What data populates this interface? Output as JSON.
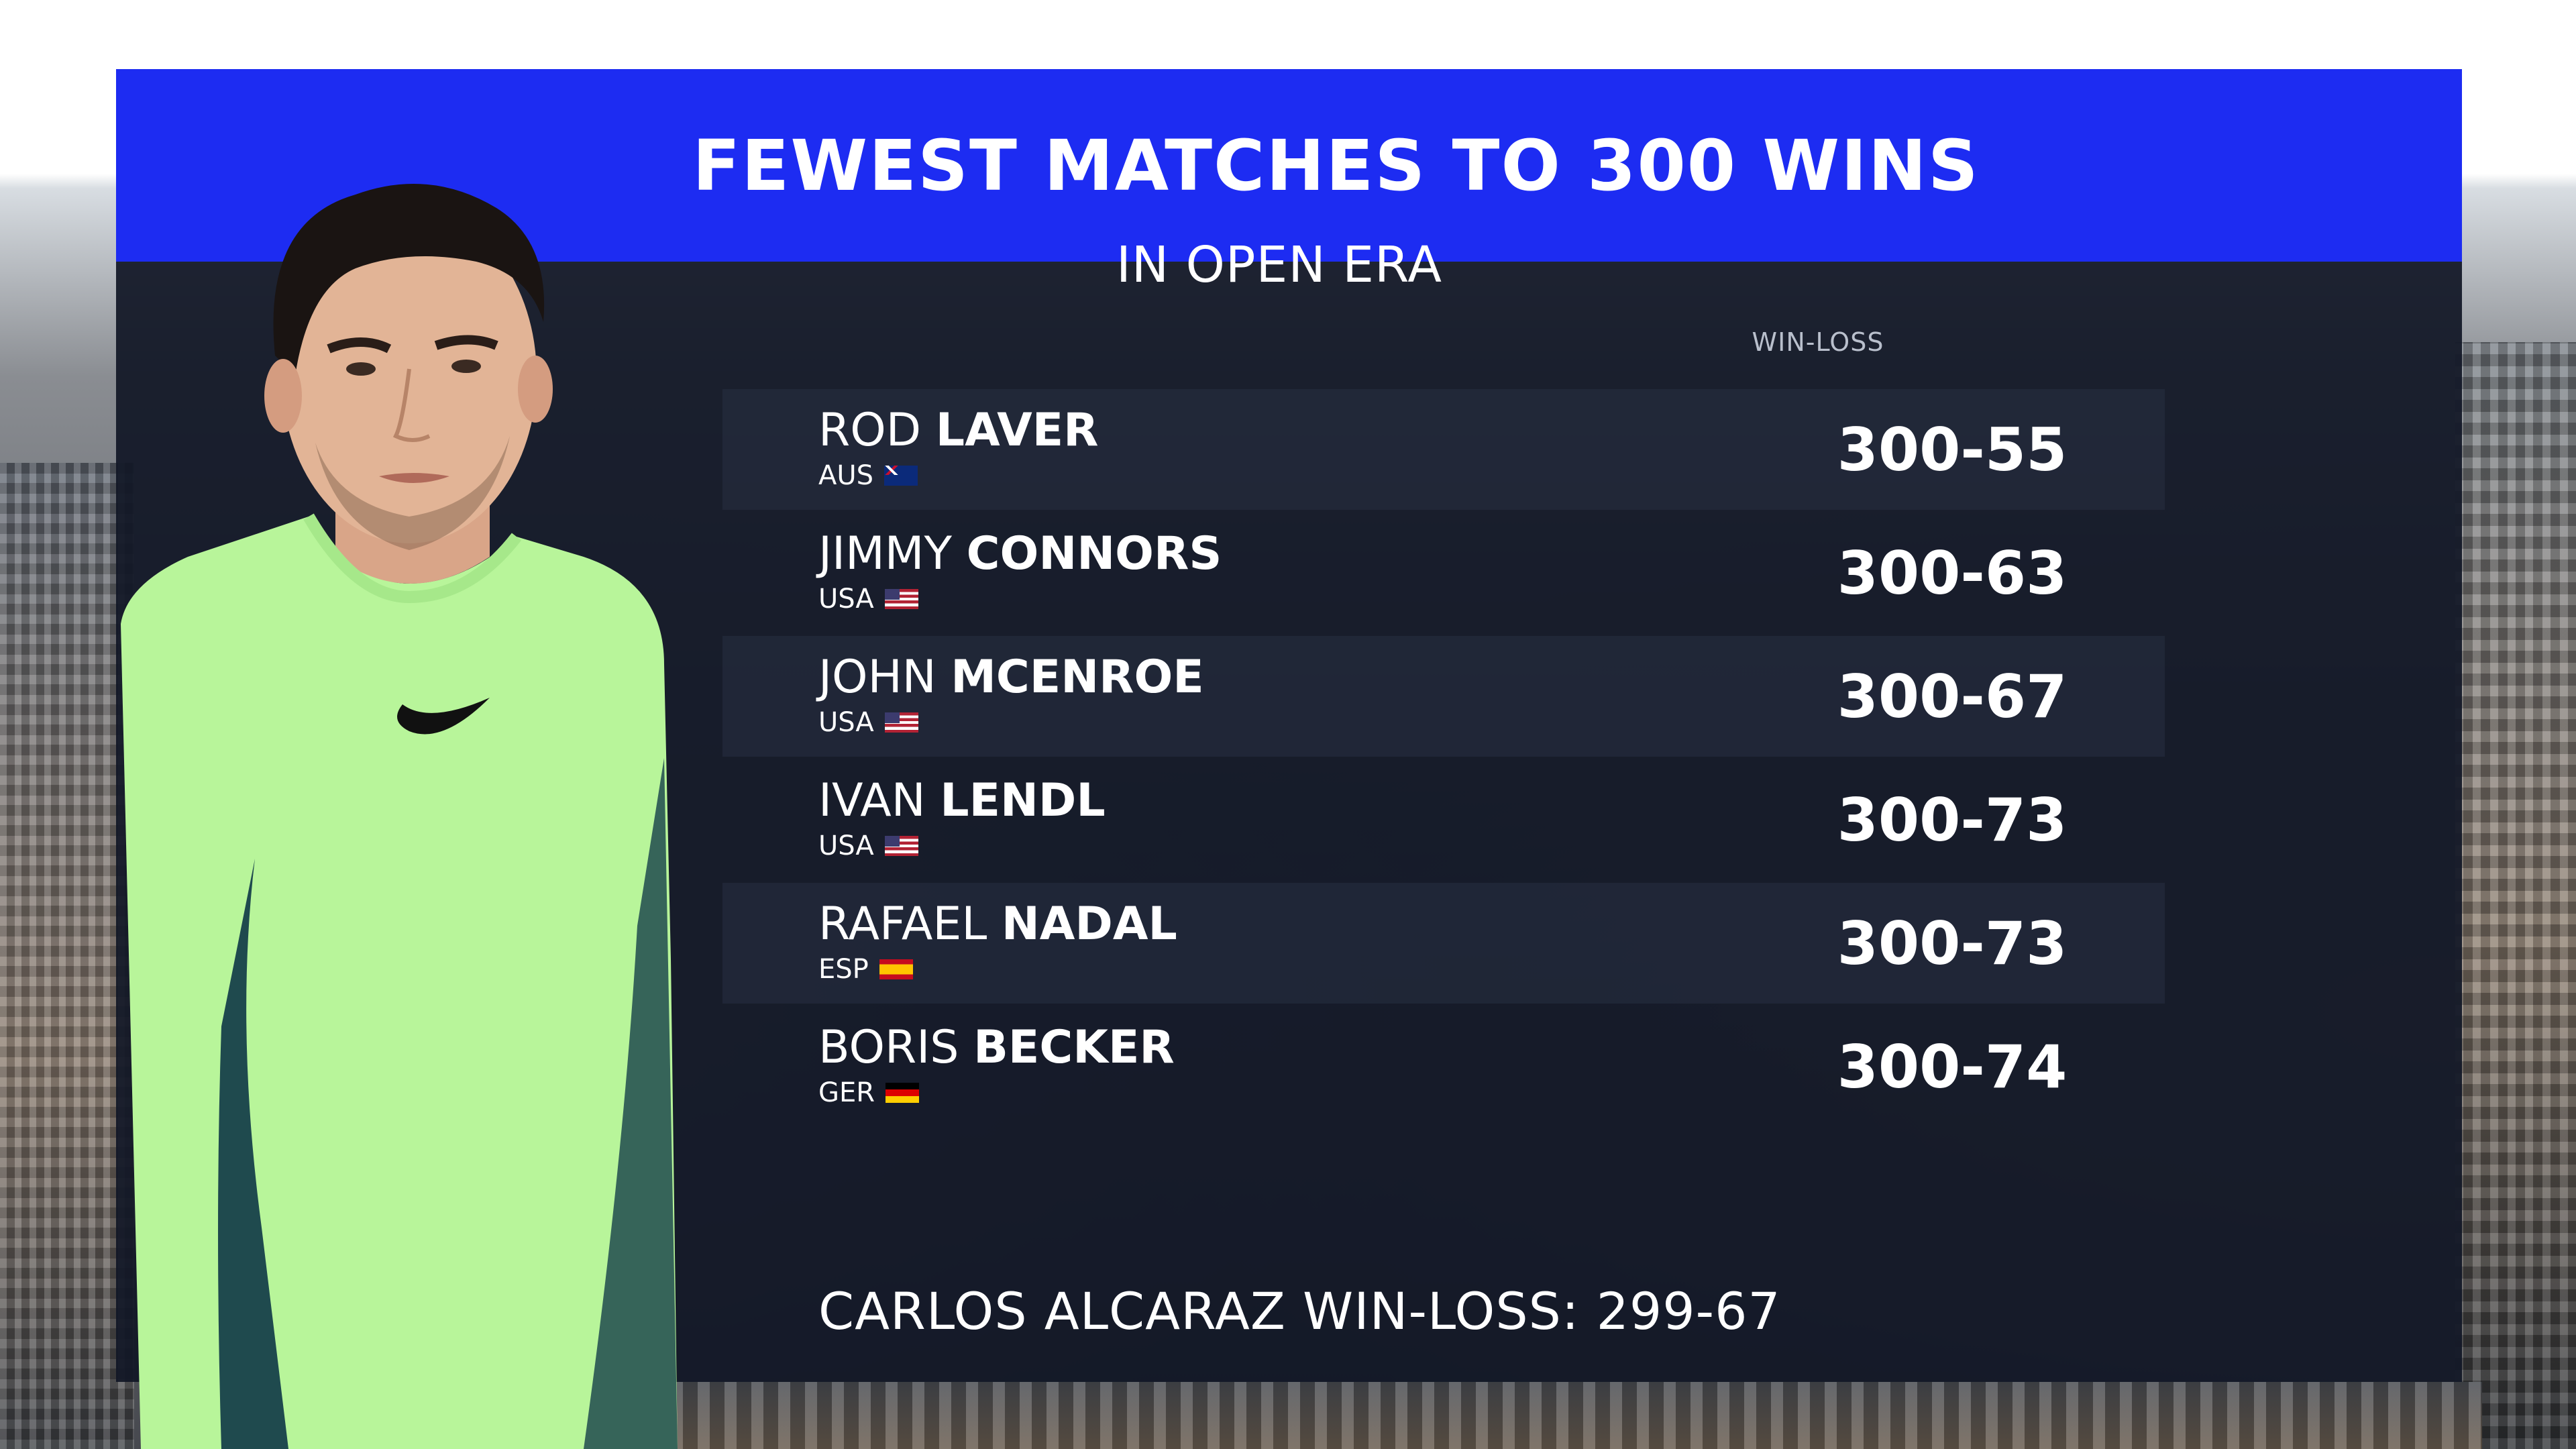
{
  "graphic": {
    "title": "FEWEST MATCHES TO 300 WINS",
    "subtitle": "IN OPEN ERA",
    "column_header": "WIN-LOSS",
    "rows": [
      {
        "first": "ROD",
        "last": "LAVER",
        "country": "AUS",
        "flag": "aus-flag-icon",
        "record": "300-55"
      },
      {
        "first": "JIMMY",
        "last": "CONNORS",
        "country": "USA",
        "flag": "usa-flag-icon",
        "record": "300-63"
      },
      {
        "first": "JOHN",
        "last": "MCENROE",
        "country": "USA",
        "flag": "usa-flag-icon",
        "record": "300-67"
      },
      {
        "first": "IVAN",
        "last": "LENDL",
        "country": "USA",
        "flag": "usa-flag-icon",
        "record": "300-73"
      },
      {
        "first": "RAFAEL",
        "last": "NADAL",
        "country": "ESP",
        "flag": "esp-flag-icon",
        "record": "300-73"
      },
      {
        "first": "BORIS",
        "last": "BECKER",
        "country": "GER",
        "flag": "ger-flag-icon",
        "record": "300-74"
      }
    ],
    "footer": "CARLOS ALCARAZ WIN-LOSS: 299-67"
  },
  "colors": {
    "header_blue": "#1d2cf2",
    "panel_navy": "#111726",
    "shirt_green": "#b9f59a"
  }
}
